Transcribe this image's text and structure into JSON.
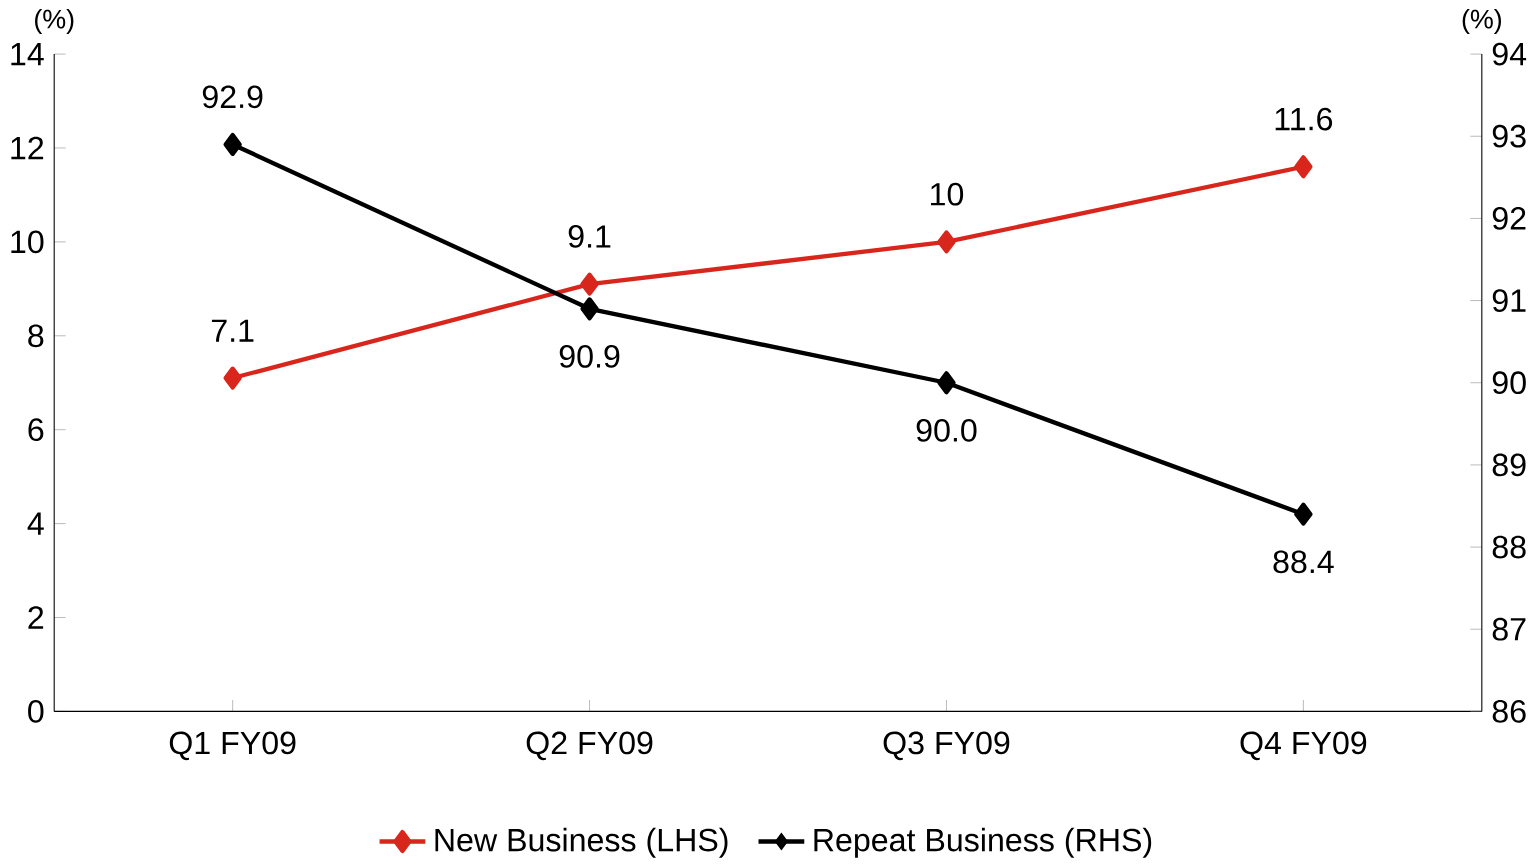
{
  "chart_data": {
    "type": "line",
    "ylabel": "(%)",
    "y2label": "(%)",
    "categories": [
      "Q1 FY09",
      "Q2 FY09",
      "Q3 FY09",
      "Q4 FY09"
    ],
    "series": [
      {
        "name": "New Business (LHS)",
        "color": "#d9261c",
        "values": [
          7.1,
          9.1,
          10,
          11.6
        ],
        "value_labels": [
          "7.1",
          "9.1",
          "10",
          "11.6"
        ]
      },
      {
        "name": "Repeat Business (RHS)",
        "color": "#000000",
        "axis": "y2",
        "values": [
          92.9,
          90.9,
          90.0,
          88.4
        ],
        "value_labels": [
          "92.9",
          "90.9",
          "90.0",
          "88.4"
        ]
      }
    ],
    "ylim": [
      0,
      14
    ],
    "yticks": [
      0,
      2,
      4,
      6,
      8,
      10,
      12,
      14
    ],
    "y2lim": [
      86,
      94
    ],
    "y2ticks": [
      86,
      87,
      88,
      89,
      90,
      91,
      92,
      93,
      94
    ],
    "legend": "bottom",
    "marker": "diamond",
    "line_style": "solid",
    "grid": false
  }
}
